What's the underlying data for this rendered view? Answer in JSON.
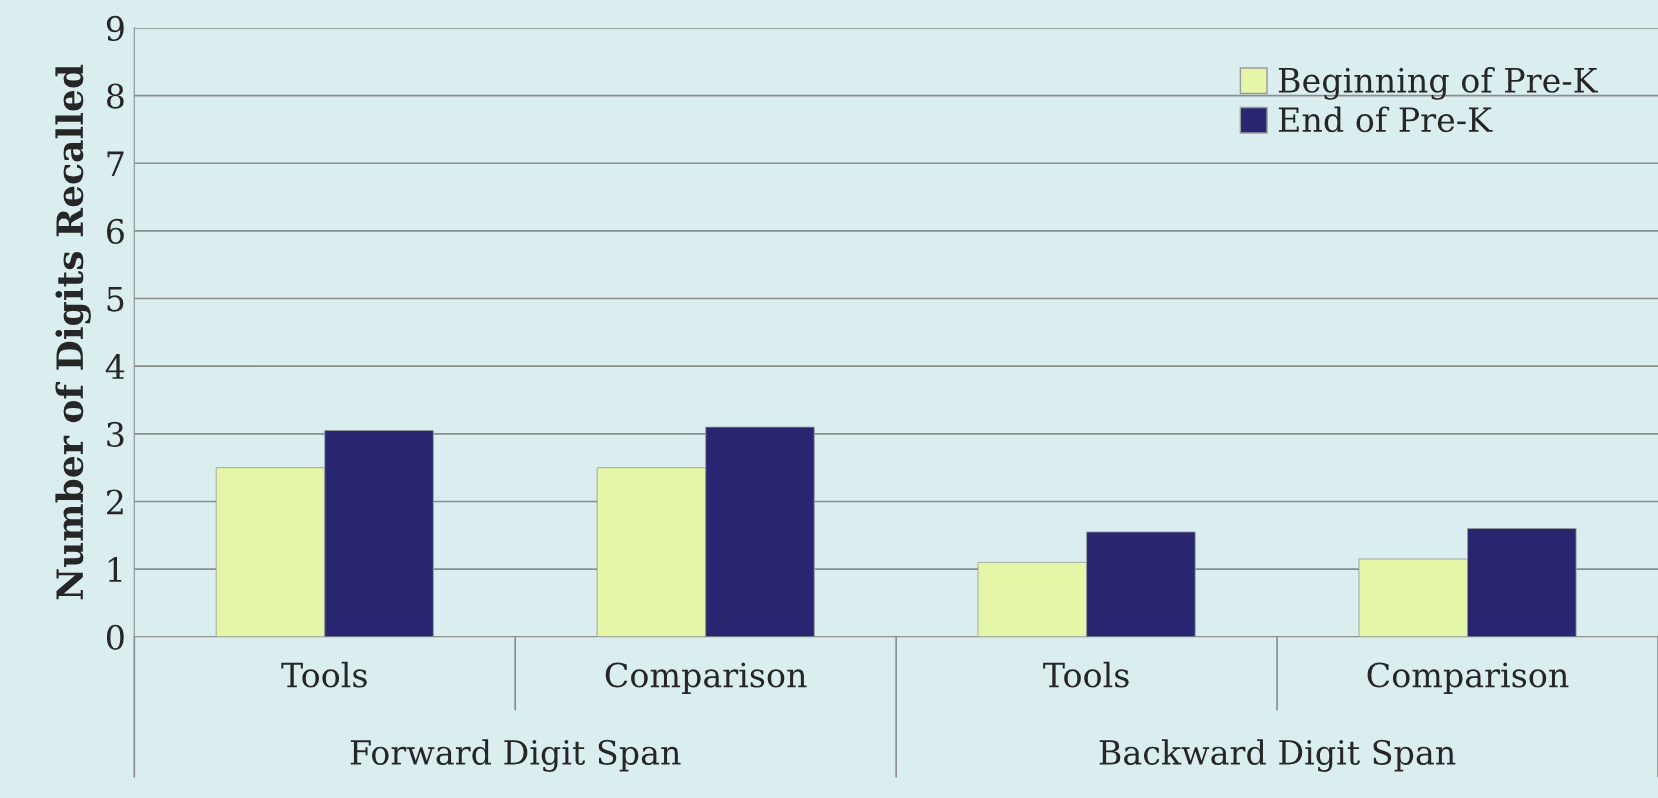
{
  "chart_data": {
    "type": "bar",
    "ylabel": "Number of Digits Recalled",
    "categories": [
      "Tools",
      "Comparison",
      "Tools",
      "Comparison"
    ],
    "series": [
      {
        "name": "Beginning of Pre-K",
        "color": "#e5f7a6",
        "values": [
          2.5,
          2.5,
          1.1,
          1.15
        ]
      },
      {
        "name": "End of Pre-K",
        "color": "#282670",
        "values": [
          3.05,
          3.1,
          1.55,
          1.6
        ]
      }
    ],
    "annotations": [
      "Forward Digit Span",
      "Backward Digit Span"
    ],
    "ylim": [
      0,
      9
    ],
    "yticks": [
      0,
      1,
      2,
      3,
      4,
      5,
      6,
      7,
      8,
      9
    ],
    "grid": "y",
    "legend": "top right"
  }
}
